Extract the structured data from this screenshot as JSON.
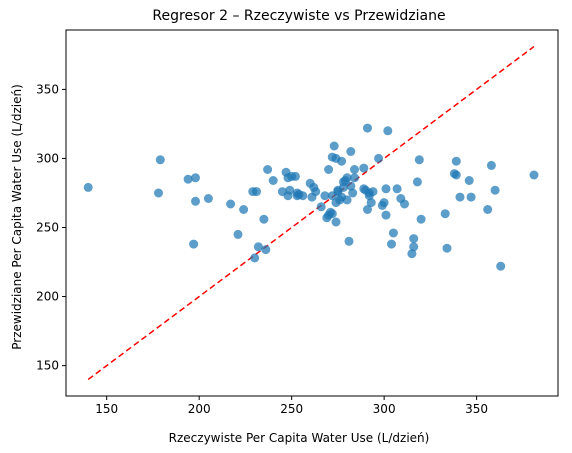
{
  "chart_data": {
    "type": "scatter",
    "title": "Regresor 2 – Rzeczywiste vs Przewidziane",
    "xlabel": "Rzeczywiste Per Capita Water Use (L/dzień)",
    "ylabel": "Przewidziane Per Capita Water Use (L/dzień)",
    "xlim": [
      128,
      394
    ],
    "ylim": [
      128,
      393
    ],
    "xticks": [
      150,
      200,
      250,
      300,
      350
    ],
    "yticks": [
      150,
      200,
      250,
      300,
      350
    ],
    "grid": false,
    "point_color": "#1f77b4",
    "reference_line_color": "#ff0000",
    "reference_line": {
      "x": [
        140,
        381
      ],
      "y": [
        140,
        381
      ]
    },
    "series": [
      {
        "x": [
          140,
          178,
          179,
          194,
          197,
          198,
          198,
          205,
          217,
          221,
          224,
          229,
          230,
          231,
          232,
          235,
          236,
          237,
          240,
          245,
          247,
          248,
          248,
          249,
          250,
          252,
          253,
          253,
          254,
          256,
          260,
          261,
          262,
          263,
          266,
          268,
          269,
          270,
          270,
          271,
          272,
          272,
          272,
          273,
          274,
          274,
          274,
          275,
          275,
          276,
          277,
          277,
          278,
          278,
          279,
          280,
          280,
          281,
          282,
          282,
          283,
          284,
          284,
          289,
          289,
          290,
          291,
          291,
          292,
          292,
          293,
          294,
          297,
          299,
          300,
          301,
          301,
          302,
          304,
          305,
          307,
          309,
          311,
          315,
          316,
          316,
          318,
          319,
          320,
          333,
          334,
          338,
          339,
          339,
          341,
          346,
          347,
          356,
          358,
          360,
          363,
          381
        ],
        "y": [
          279,
          275,
          299,
          285,
          238,
          269,
          286,
          271,
          267,
          245,
          263,
          276,
          228,
          276,
          236,
          256,
          234,
          292,
          284,
          276,
          290,
          273,
          286,
          277,
          287,
          287,
          275,
          273,
          274,
          273,
          282,
          272,
          279,
          276,
          265,
          273,
          257,
          259,
          292,
          261,
          260,
          301,
          273,
          309,
          254,
          268,
          300,
          277,
          276,
          270,
          298,
          272,
          283,
          279,
          284,
          270,
          286,
          240,
          280,
          305,
          275,
          286,
          292,
          293,
          278,
          277,
          322,
          263,
          273,
          275,
          268,
          276,
          300,
          266,
          268,
          278,
          259,
          320,
          238,
          246,
          278,
          271,
          267,
          231,
          242,
          236,
          283,
          299,
          256,
          260,
          235,
          289,
          298,
          288,
          272,
          284,
          272,
          263,
          295,
          277,
          222,
          288
        ]
      }
    ]
  }
}
